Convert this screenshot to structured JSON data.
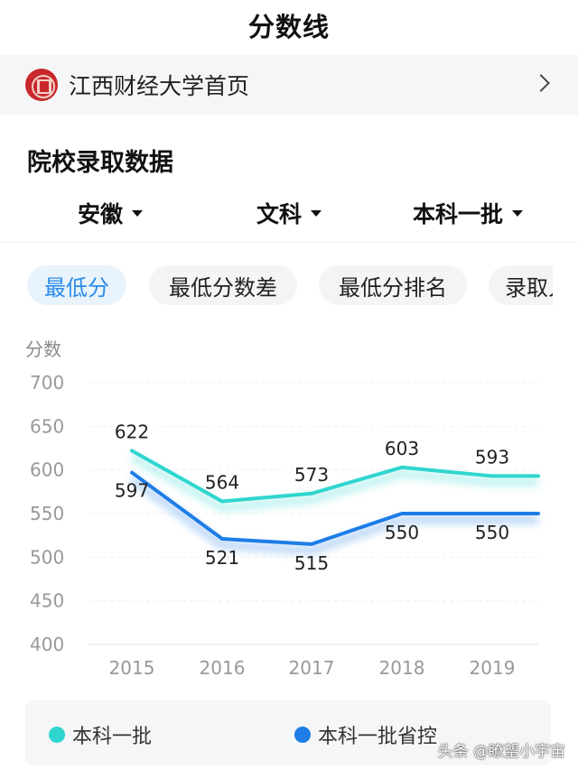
{
  "header": {
    "title": "分数线"
  },
  "school": {
    "name": "江西财经大学首页",
    "logo_icon": "university-seal-icon",
    "arrow_icon": "chevron-right-icon"
  },
  "section": {
    "title": "院校录取数据"
  },
  "filters": [
    {
      "label": "安徽",
      "icon": "caret-down-icon"
    },
    {
      "label": "文科",
      "icon": "caret-down-icon"
    },
    {
      "label": "本科一批",
      "icon": "caret-down-icon"
    }
  ],
  "tabs": [
    {
      "label": "最低分",
      "active": true
    },
    {
      "label": "最低分数差",
      "active": false
    },
    {
      "label": "最低分排名",
      "active": false
    },
    {
      "label": "录取人数",
      "active": false
    }
  ],
  "colors": {
    "accent": "#2a8be8",
    "series1": "#2fd6cf",
    "series2": "#1e7de6"
  },
  "chart_data": {
    "type": "line",
    "ylabel": "分数",
    "ylim": [
      400,
      700
    ],
    "yticks": [
      700,
      650,
      600,
      550,
      500,
      450,
      400
    ],
    "categories": [
      "2015",
      "2016",
      "2017",
      "2018",
      "2019"
    ],
    "series": [
      {
        "name": "本科一批",
        "values": [
          622,
          564,
          573,
          603,
          593
        ],
        "color": "#2fd6cf"
      },
      {
        "name": "本科一批省控",
        "values": [
          597,
          521,
          515,
          550,
          550
        ],
        "color": "#1e7de6"
      }
    ],
    "grid": true
  },
  "legend": [
    {
      "label": "本科一批",
      "color": "#2fd6cf"
    },
    {
      "label": "本科一批省控",
      "color": "#1e7de6"
    }
  ],
  "watermark": "头条 @瞭望小宇宙"
}
